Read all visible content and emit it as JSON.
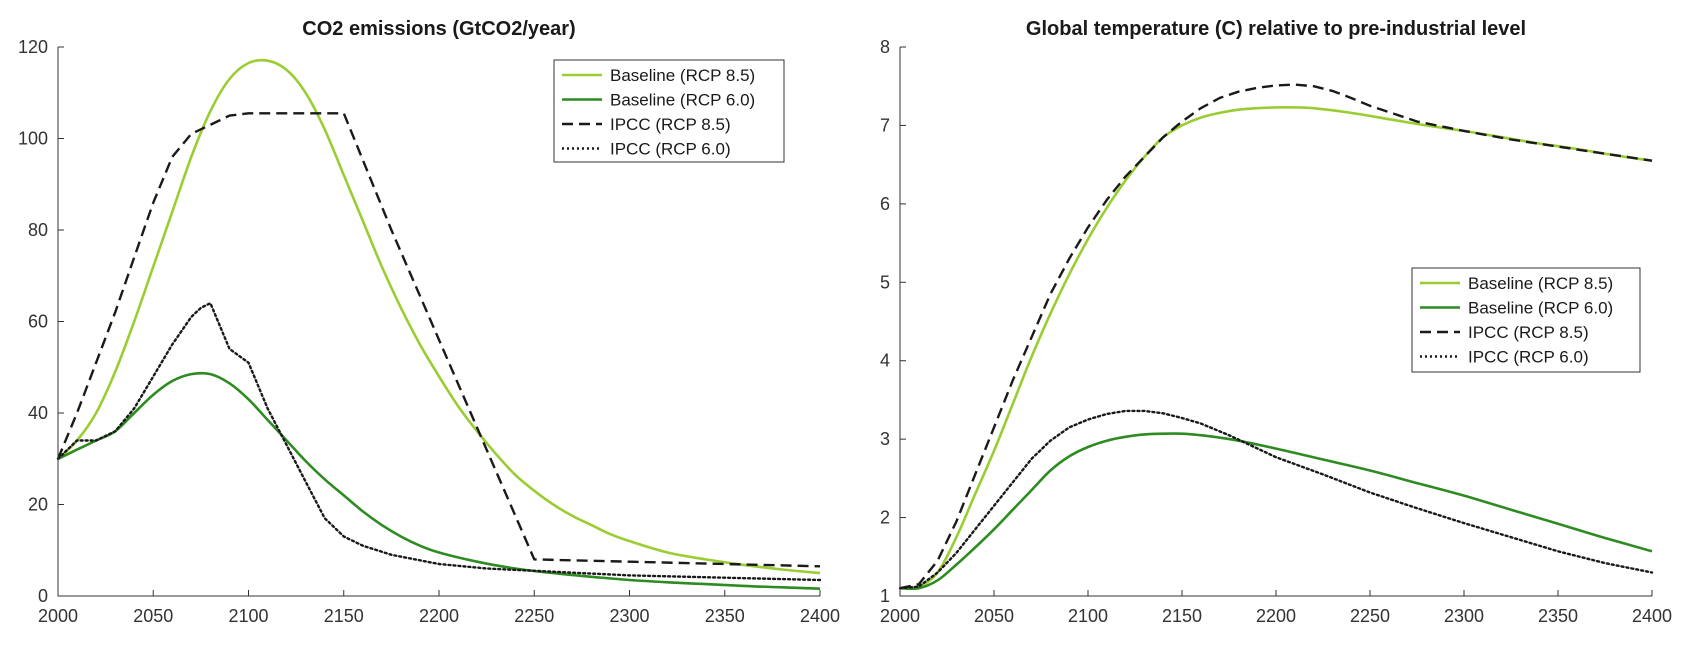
{
  "chart_data": [
    {
      "type": "line",
      "title": "CO2 emissions (GtCO2/year)",
      "xlabel": "",
      "ylabel": "",
      "xlim": [
        2000,
        2400
      ],
      "ylim": [
        0,
        120
      ],
      "xticks": [
        "2000",
        "2050",
        "2100",
        "2150",
        "2200",
        "2250",
        "2300",
        "2350",
        "2400"
      ],
      "yticks": [
        "0",
        "20",
        "40",
        "60",
        "80",
        "100",
        "120"
      ],
      "grid": false,
      "legend_position": "top-right",
      "series": [
        {
          "name": "Baseline (RCP 8.5)",
          "color": "#9ACD32",
          "dash": "solid",
          "x": [
            2000,
            2010,
            2020,
            2030,
            2040,
            2050,
            2060,
            2070,
            2080,
            2090,
            2100,
            2110,
            2120,
            2130,
            2140,
            2150,
            2160,
            2170,
            2180,
            2190,
            2200,
            2210,
            2220,
            2230,
            2240,
            2250,
            2260,
            2270,
            2280,
            2290,
            2300,
            2320,
            2340,
            2360,
            2380,
            2400
          ],
          "y": [
            30,
            34,
            40,
            49,
            60,
            72,
            84,
            96,
            106,
            113,
            116.5,
            117,
            115,
            110,
            102,
            92,
            82,
            72,
            63,
            55,
            48,
            41.5,
            36,
            31,
            26.5,
            23,
            20,
            17.5,
            15.5,
            13.5,
            12,
            9.5,
            8,
            6.8,
            5.8,
            5
          ]
        },
        {
          "name": "Baseline (RCP 6.0)",
          "color": "#2E8B22",
          "dash": "solid",
          "x": [
            2000,
            2010,
            2020,
            2030,
            2040,
            2050,
            2060,
            2070,
            2080,
            2090,
            2100,
            2110,
            2120,
            2130,
            2140,
            2150,
            2160,
            2170,
            2180,
            2190,
            2200,
            2220,
            2240,
            2260,
            2280,
            2300,
            2320,
            2340,
            2360,
            2380,
            2400
          ],
          "y": [
            30,
            32,
            34,
            36,
            40,
            44,
            47,
            48.5,
            48.5,
            46.5,
            43,
            38.5,
            34,
            29.5,
            25.5,
            22,
            18.5,
            15.5,
            13,
            11,
            9.5,
            7.5,
            6,
            5,
            4.2,
            3.5,
            3,
            2.6,
            2.2,
            1.9,
            1.6
          ]
        },
        {
          "name": "IPCC (RCP 8.5)",
          "color": "#1a1a1a",
          "dash": "dashed",
          "x": [
            2000,
            2010,
            2020,
            2030,
            2040,
            2050,
            2060,
            2070,
            2080,
            2090,
            2100,
            2110,
            2120,
            2130,
            2140,
            2150,
            2175,
            2200,
            2225,
            2250,
            2300,
            2350,
            2400
          ],
          "y": [
            30,
            40,
            51,
            62,
            74,
            86,
            96,
            101,
            103,
            105,
            105.5,
            105.5,
            105.5,
            105.5,
            105.5,
            105.5,
            80,
            56,
            32,
            8,
            7.5,
            7,
            6.5
          ]
        },
        {
          "name": "IPCC (RCP 6.0)",
          "color": "#1a1a1a",
          "dash": "dotted",
          "x": [
            2000,
            2010,
            2020,
            2030,
            2040,
            2050,
            2060,
            2070,
            2075,
            2080,
            2090,
            2100,
            2110,
            2120,
            2130,
            2140,
            2150,
            2160,
            2175,
            2200,
            2225,
            2250,
            2275,
            2300,
            2350,
            2400
          ],
          "y": [
            30,
            34,
            34,
            36,
            41,
            48,
            55,
            61,
            63,
            64,
            54,
            51,
            41,
            33,
            25,
            17,
            13,
            11,
            9,
            7,
            6,
            5.5,
            5,
            4.5,
            4,
            3.5
          ]
        }
      ]
    },
    {
      "type": "line",
      "title": "Global temperature (C) relative to pre-industrial level",
      "xlabel": "",
      "ylabel": "",
      "xlim": [
        2000,
        2400
      ],
      "ylim": [
        1,
        8
      ],
      "xticks": [
        "2000",
        "2050",
        "2100",
        "2150",
        "2200",
        "2250",
        "2300",
        "2350",
        "2400"
      ],
      "yticks": [
        "1",
        "2",
        "3",
        "4",
        "5",
        "6",
        "7",
        "8"
      ],
      "grid": false,
      "legend_position": "center-right",
      "series": [
        {
          "name": "Baseline (RCP 8.5)",
          "color": "#9ACD32",
          "dash": "solid",
          "x": [
            2000,
            2010,
            2020,
            2030,
            2040,
            2050,
            2060,
            2070,
            2080,
            2090,
            2100,
            2110,
            2120,
            2130,
            2140,
            2150,
            2160,
            2170,
            2180,
            2190,
            2200,
            2210,
            2220,
            2240,
            2260,
            2280,
            2300,
            2320,
            2340,
            2360,
            2380,
            2400
          ],
          "y": [
            1.1,
            1.12,
            1.3,
            1.75,
            2.3,
            2.85,
            3.45,
            4.05,
            4.6,
            5.1,
            5.55,
            5.95,
            6.3,
            6.6,
            6.85,
            7.0,
            7.1,
            7.16,
            7.2,
            7.22,
            7.23,
            7.23,
            7.22,
            7.16,
            7.08,
            7.0,
            6.93,
            6.85,
            6.77,
            6.7,
            6.62,
            6.55
          ]
        },
        {
          "name": "Baseline (RCP 6.0)",
          "color": "#2E8B22",
          "dash": "solid",
          "x": [
            2000,
            2010,
            2020,
            2030,
            2040,
            2050,
            2060,
            2070,
            2080,
            2090,
            2100,
            2110,
            2120,
            2130,
            2140,
            2150,
            2160,
            2170,
            2180,
            2200,
            2225,
            2250,
            2275,
            2300,
            2325,
            2350,
            2375,
            2400
          ],
          "y": [
            1.1,
            1.1,
            1.2,
            1.4,
            1.62,
            1.85,
            2.1,
            2.35,
            2.6,
            2.78,
            2.9,
            2.98,
            3.03,
            3.06,
            3.07,
            3.07,
            3.05,
            3.02,
            2.98,
            2.88,
            2.74,
            2.6,
            2.44,
            2.28,
            2.1,
            1.92,
            1.74,
            1.57
          ]
        },
        {
          "name": "IPCC (RCP 8.5)",
          "color": "#1a1a1a",
          "dash": "dashed",
          "x": [
            2000,
            2010,
            2020,
            2030,
            2040,
            2050,
            2060,
            2070,
            2080,
            2090,
            2100,
            2110,
            2120,
            2130,
            2140,
            2150,
            2160,
            2170,
            2180,
            2190,
            2200,
            2210,
            2220,
            2230,
            2240,
            2250,
            2275,
            2300,
            2325,
            2350,
            2375,
            2400
          ],
          "y": [
            1.1,
            1.15,
            1.45,
            1.95,
            2.55,
            3.15,
            3.75,
            4.3,
            4.85,
            5.3,
            5.7,
            6.05,
            6.35,
            6.6,
            6.85,
            7.05,
            7.22,
            7.35,
            7.43,
            7.48,
            7.51,
            7.52,
            7.5,
            7.44,
            7.35,
            7.25,
            7.05,
            6.93,
            6.82,
            6.73,
            6.64,
            6.55
          ]
        },
        {
          "name": "IPCC (RCP 6.0)",
          "color": "#1a1a1a",
          "dash": "dotted",
          "x": [
            2000,
            2010,
            2020,
            2030,
            2040,
            2050,
            2060,
            2070,
            2080,
            2090,
            2100,
            2110,
            2120,
            2130,
            2140,
            2150,
            2160,
            2175,
            2200,
            2225,
            2250,
            2275,
            2300,
            2325,
            2350,
            2375,
            2400
          ],
          "y": [
            1.1,
            1.12,
            1.3,
            1.55,
            1.85,
            2.15,
            2.45,
            2.75,
            2.98,
            3.15,
            3.25,
            3.32,
            3.36,
            3.36,
            3.33,
            3.27,
            3.2,
            3.05,
            2.77,
            2.55,
            2.32,
            2.12,
            1.93,
            1.75,
            1.57,
            1.42,
            1.3
          ]
        }
      ]
    }
  ]
}
